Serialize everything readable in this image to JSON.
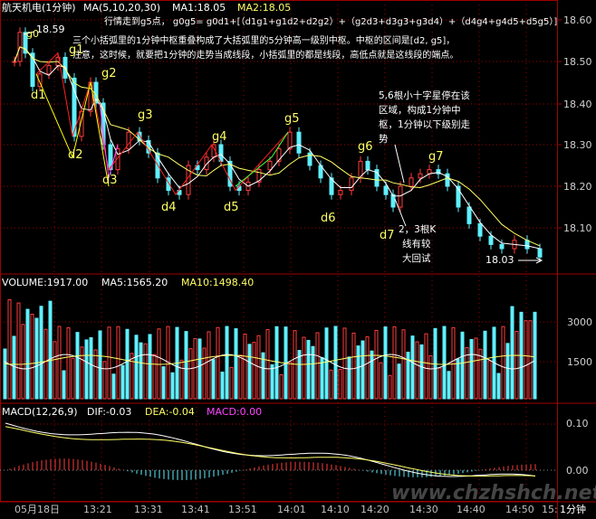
{
  "header": {
    "title": "航天机电(1分钟)",
    "ma_label": "MA(5,10,20,30)",
    "ma1": "MA1:18.05",
    "ma2": "MA2:18.05"
  },
  "annotation_top": {
    "line1": "行情走到g5点， g0g5= g0d1+[（d1g1+g1d2+d2g2）+（g2d3+d3g3+g3d4）+（d4g4+g4d5+d5g5）]",
    "line2": "三个小括弧里的1分钟中枢重叠构成了大括弧里的5分钟高一级别中枢。中枢的区间是[d2, g5]，",
    "line3": "注意，这时候，就要把1分钟的走势当成线段，小括弧里的都是线段，高低点就是这线段的端点。"
  },
  "annotation_right": {
    "line1": "5,6根小十字星停在该",
    "line2": "区域，构成1分钟中",
    "line3": "枢，1分钟以下级别走",
    "line4": "势"
  },
  "annotation_k": {
    "line1": "2，3根K",
    "line2": "线有较",
    "line3": "大回试"
  },
  "price_labels": {
    "high": "18.59",
    "low": "18.03"
  },
  "points": {
    "g0": "g0",
    "g1": "g1",
    "g2": "g2",
    "g3": "g3",
    "g4": "g4",
    "g5": "g5",
    "g6": "g6",
    "g7": "g7",
    "d1": "d1",
    "d2": "d2",
    "d3": "d3",
    "d4": "d4",
    "d5": "d5",
    "d6": "d6",
    "d7": "d7"
  },
  "price_axis": [
    "18.60",
    "18.50",
    "18.40",
    "18.30",
    "18.20",
    "18.10"
  ],
  "volume": {
    "label": "VOLUME:1917.00",
    "ma5": "MA5:1565.20",
    "ma10": "MA10:1498.40",
    "axis": [
      "3000",
      "1500"
    ]
  },
  "macd": {
    "label": "MACD(12,26,9)",
    "dif": "DIF:-0.03",
    "dea": "DEA:-0.04",
    "macd": "MACD:0.00",
    "axis": [
      "0.10",
      "0.00"
    ]
  },
  "time_axis": [
    "05月18日",
    "13:21",
    "13:31",
    "13:41",
    "13:51",
    "14:01",
    "14:10",
    "14:20",
    "14:30",
    "14:40",
    "14:50",
    "15:"
  ],
  "period": "1分钟",
  "watermark": "www.chzhshch.net",
  "colors": {
    "up": "#ff3c3c",
    "down": "#5ff0ff",
    "ma1": "#ffffff",
    "ma2": "#ffff66",
    "grid": "#a00000"
  }
}
